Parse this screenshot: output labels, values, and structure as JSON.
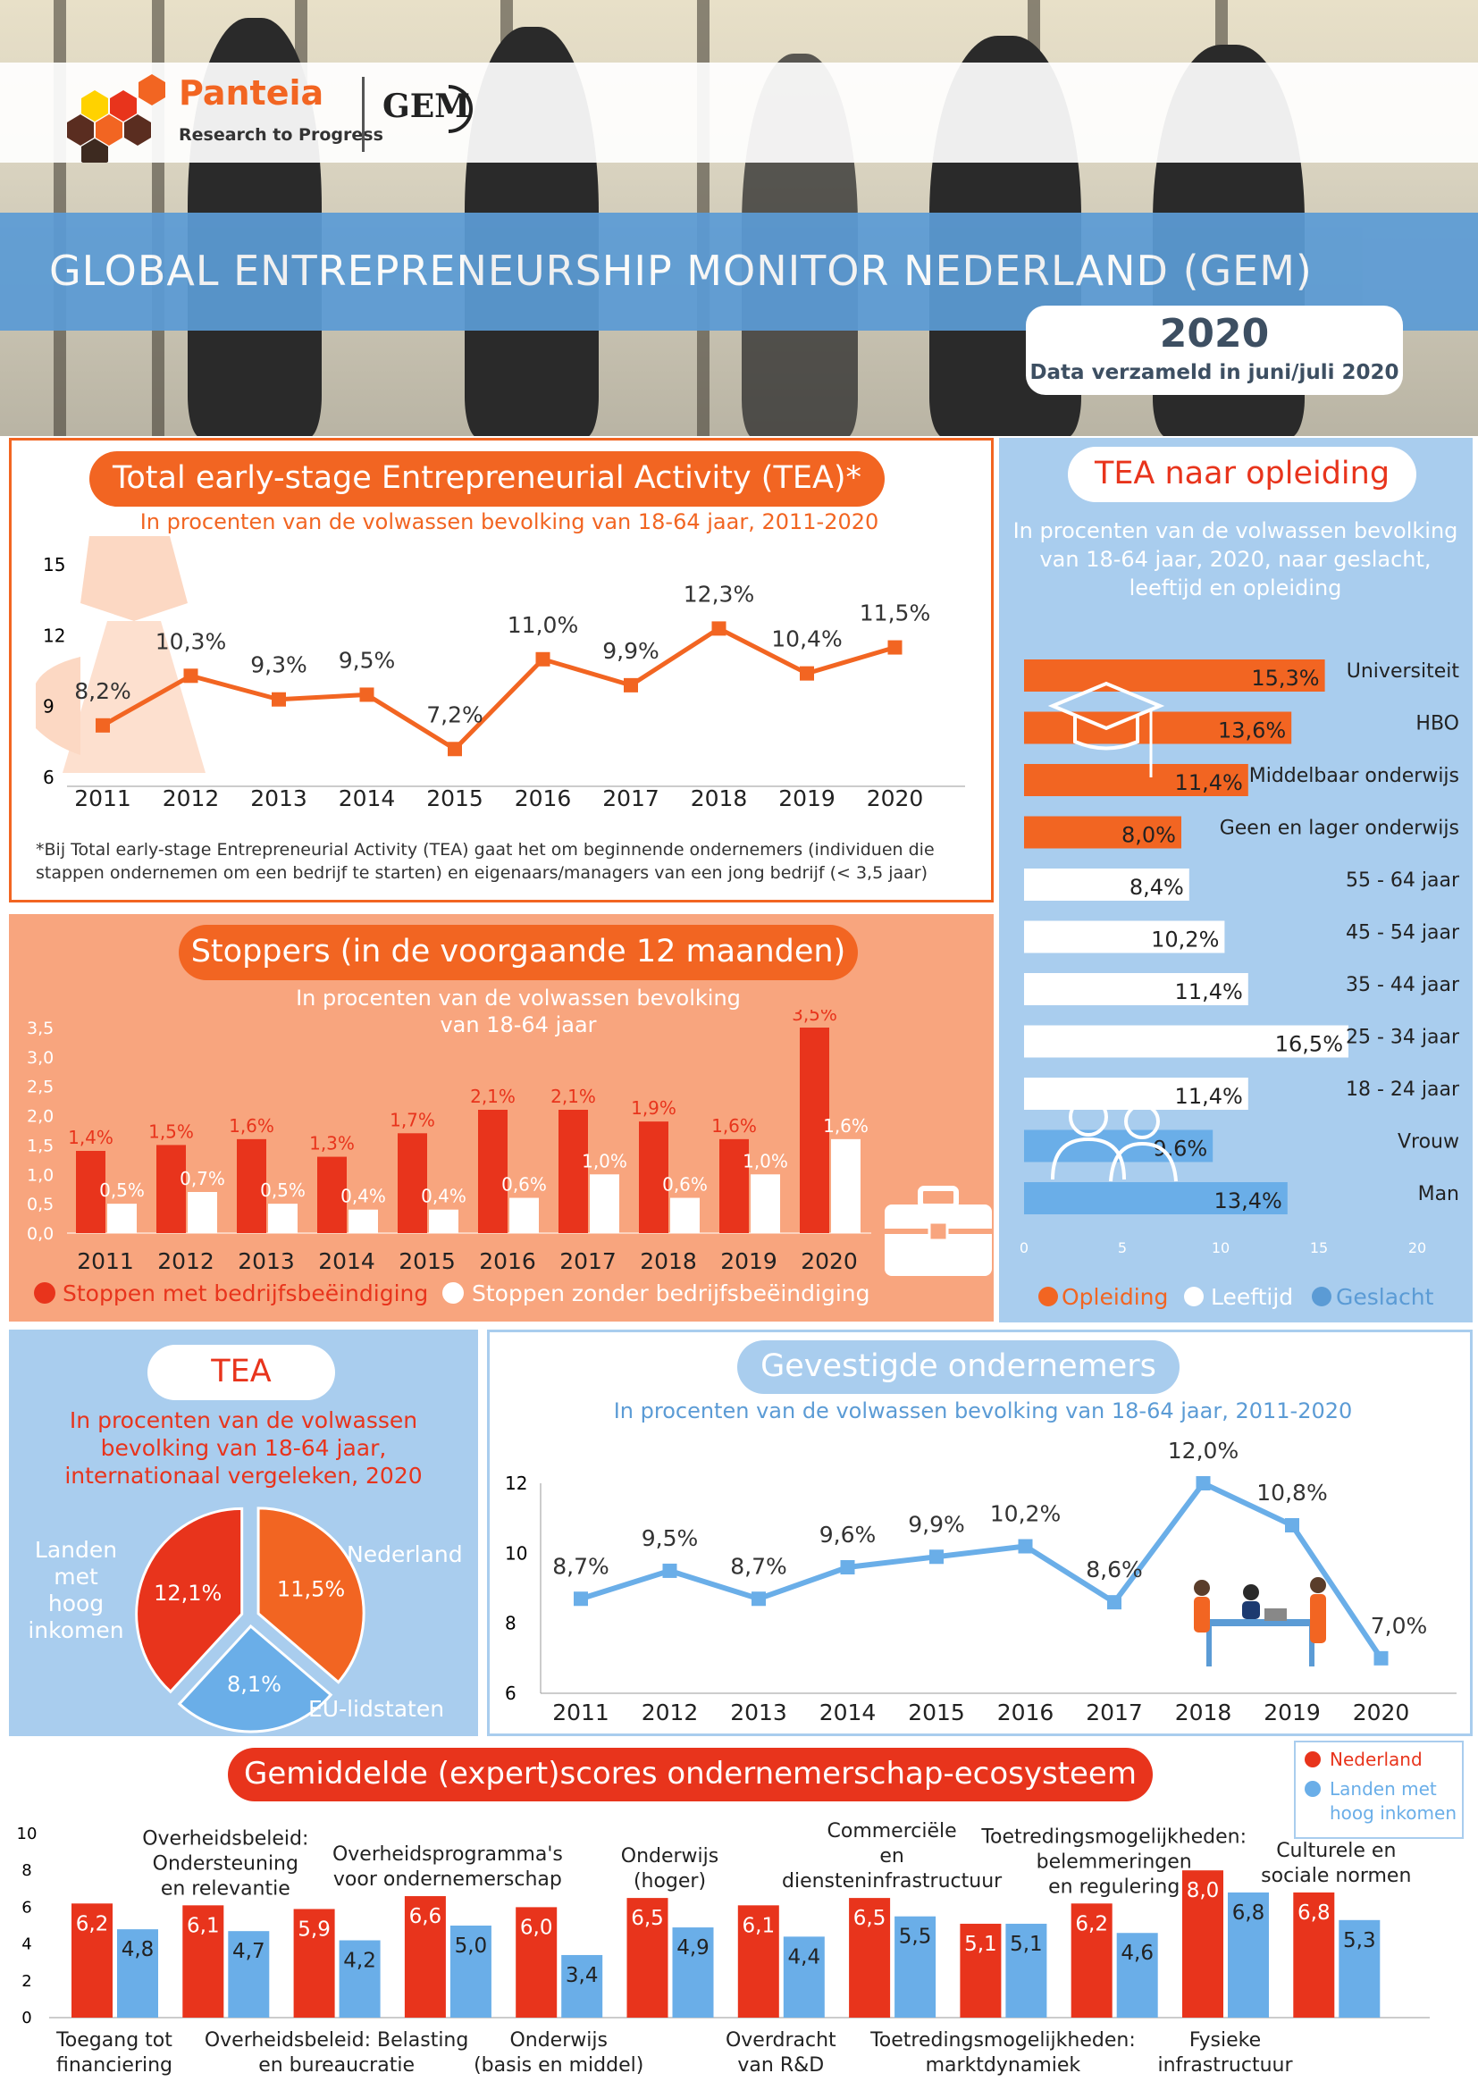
{
  "header": {
    "brand": "Panteia",
    "tagline": "Research to Progress",
    "partner_logo": "GEM",
    "title": "GLOBAL ENTREPRENEURSHIP MONITOR NEDERLAND (GEM)",
    "year": "2020",
    "data_note": "Data verzameld in juni/juli 2020"
  },
  "colors": {
    "orange": "#f26522",
    "red": "#e8341c",
    "blue": "#5b9bd5",
    "lightblue": "#a9cdee",
    "salmon": "#f8a57e",
    "peach": "#fcd8c3"
  },
  "tea": {
    "title": "Total early-stage Entrepreneurial Activity (TEA)*",
    "subtitle": "In procenten van de volwassen bevolking van 18-64 jaar, 2011-2020",
    "footnote1": "*Bij Total early-stage Entrepreneurial Activity (TEA) gaat het om beginnende ondernemers (individuen die",
    "footnote2": "stappen ondernemen om een bedrijf te starten) en eigenaars/managers van een jong bedrijf (< 3,5 jaar)"
  },
  "stoppers": {
    "title": "Stoppers (in de voorgaande 12 maanden)",
    "subtitle1": "In procenten van de volwassen bevolking",
    "subtitle2": "van 18-64 jaar",
    "legend1": "Stoppen met bedrijfsbeëindiging",
    "legend2": "Stoppen zonder bedrijfsbeëindiging"
  },
  "opleiding": {
    "title": "TEA naar opleiding",
    "sub1": "In procenten van de volwassen bevolking",
    "sub2": "van 18-64 jaar, 2020, naar geslacht,",
    "sub3": "leeftijd en opleiding",
    "legend1": "Opleiding",
    "legend2": "Leeftijd",
    "legend3": "Geslacht"
  },
  "intl": {
    "title": "TEA",
    "sub1": "In procenten van de volwassen",
    "sub2": "bevolking van 18-64 jaar,",
    "sub3": "internationaal vergeleken, 2020",
    "label_nl": "Nederland",
    "label_high1": "Landen",
    "label_high2": "met hoog",
    "label_high3": "inkomen",
    "label_eu": "EU-lidstaten"
  },
  "gevestigd": {
    "title": "Gevestigde ondernemers",
    "subtitle": "In procenten van de volwassen bevolking van 18-64 jaar, 2011-2020"
  },
  "eco": {
    "title": "Gemiddelde (expert)scores ondernemerschap-ecosysteem",
    "legend_nl": "Nederland",
    "legend_hi1": "Landen met",
    "legend_hi2": "hoog inkomen"
  },
  "chart_data": [
    {
      "type": "line",
      "id": "tea",
      "x": [
        "2011",
        "2012",
        "2013",
        "2014",
        "2015",
        "2016",
        "2017",
        "2018",
        "2019",
        "2020"
      ],
      "values": [
        8.2,
        10.3,
        9.3,
        9.5,
        7.2,
        11.0,
        9.9,
        12.3,
        10.4,
        11.5
      ],
      "labels": [
        "8,2%",
        "10,3%",
        "9,3%",
        "9,5%",
        "7,2%",
        "11,0%",
        "9,9%",
        "12,3%",
        "10,4%",
        "11,5%"
      ],
      "yticks": [
        "15",
        "12",
        "9",
        "6"
      ],
      "ylim": [
        6,
        15
      ]
    },
    {
      "type": "bar",
      "id": "stoppers",
      "categories": [
        "2011",
        "2012",
        "2013",
        "2014",
        "2015",
        "2016",
        "2017",
        "2018",
        "2019",
        "2020"
      ],
      "yticks": [
        "3,5",
        "3,0",
        "2,5",
        "2,0",
        "1,5",
        "1,0",
        "0,5",
        "0,0"
      ],
      "ylim": [
        0,
        3.5
      ],
      "series": [
        {
          "name": "Stoppen met bedrijfsbeëindiging",
          "values": [
            1.4,
            1.5,
            1.6,
            1.3,
            1.7,
            2.1,
            2.1,
            1.9,
            1.6,
            3.5
          ],
          "labels": [
            "1,4%",
            "1,5%",
            "1,6%",
            "1,3%",
            "1,7%",
            "2,1%",
            "2,1%",
            "1,9%",
            "1,6%",
            "3,5%"
          ]
        },
        {
          "name": "Stoppen zonder bedrijfsbeëindiging",
          "values": [
            0.5,
            0.7,
            0.5,
            0.4,
            0.4,
            0.6,
            1.0,
            0.6,
            1.0,
            1.6
          ],
          "labels": [
            "0,5%",
            "0,7%",
            "0,5%",
            "0,4%",
            "0,4%",
            "0,6%",
            "1,0%",
            "0,6%",
            "1,0%",
            "1,6%"
          ]
        }
      ]
    },
    {
      "type": "bar",
      "id": "opleiding",
      "orientation": "horizontal",
      "xticks": [
        "0",
        "5",
        "10",
        "15",
        "20"
      ],
      "xlim": [
        0,
        20
      ],
      "bars": [
        {
          "cat": "Universiteit",
          "value": 15.3,
          "label": "15,3%",
          "group": "Opleiding"
        },
        {
          "cat": "HBO",
          "value": 13.6,
          "label": "13,6%",
          "group": "Opleiding"
        },
        {
          "cat": "Middelbaar onderwijs",
          "value": 11.4,
          "label": "11,4%",
          "group": "Opleiding"
        },
        {
          "cat": "Geen en lager onderwijs",
          "value": 8.0,
          "label": "8,0%",
          "group": "Opleiding"
        },
        {
          "cat": "55 - 64 jaar",
          "value": 8.4,
          "label": "8,4%",
          "group": "Leeftijd"
        },
        {
          "cat": "45 - 54 jaar",
          "value": 10.2,
          "label": "10,2%",
          "group": "Leeftijd"
        },
        {
          "cat": "35 - 44 jaar",
          "value": 11.4,
          "label": "11,4%",
          "group": "Leeftijd"
        },
        {
          "cat": "25 - 34 jaar",
          "value": 16.5,
          "label": "16,5%",
          "group": "Leeftijd"
        },
        {
          "cat": "18 - 24 jaar",
          "value": 11.4,
          "label": "11,4%",
          "group": "Leeftijd"
        },
        {
          "cat": "Vrouw",
          "value": 9.6,
          "label": "9,6%",
          "group": "Geslacht"
        },
        {
          "cat": "Man",
          "value": 13.4,
          "label": "13,4%",
          "group": "Geslacht"
        }
      ]
    },
    {
      "type": "pie",
      "id": "intl",
      "slices": [
        {
          "name": "Nederland",
          "value": 11.5,
          "label": "11,5%"
        },
        {
          "name": "EU-lidstaten",
          "value": 8.1,
          "label": "8,1%"
        },
        {
          "name": "Landen met hoog inkomen",
          "value": 12.1,
          "label": "12,1%"
        }
      ]
    },
    {
      "type": "line",
      "id": "gevestigd",
      "x": [
        "2011",
        "2012",
        "2013",
        "2014",
        "2015",
        "2016",
        "2017",
        "2018",
        "2019",
        "2020"
      ],
      "values": [
        8.7,
        9.5,
        8.7,
        9.6,
        9.9,
        10.2,
        8.6,
        12.0,
        10.8,
        7.0
      ],
      "labels": [
        "8,7%",
        "9,5%",
        "8,7%",
        "9,6%",
        "9,9%",
        "10,2%",
        "8,6%",
        "12,0%",
        "10,8%",
        "7,0%"
      ],
      "yticks": [
        "12",
        "10",
        "8",
        "6"
      ],
      "ylim": [
        6,
        12
      ]
    },
    {
      "type": "bar",
      "id": "eco",
      "yticks": [
        "10",
        "8",
        "6",
        "4",
        "2",
        "0"
      ],
      "ylim": [
        0,
        10
      ],
      "categories": [
        "Toegang tot financiering",
        "Overheidsbeleid: Ondersteuning en relevantie",
        "Overheidsbeleid: Belasting en bureaucratie",
        "Overheidsprogramma's voor ondernemerschap",
        "Onderwijs (basis en middel)",
        "Onderwijs (hoger)",
        "Overdracht van R&D",
        "Commerciële en diensteninfrastructuur",
        "Toetredingsmogelijkheden: marktdynamiek",
        "Toetredingsmogelijkheden: belemmeringen en regulering",
        "Fysieke infrastructuur",
        "Culturele en sociale normen"
      ],
      "top_labels": [
        [],
        [
          "Overheidsbeleid:",
          "Ondersteuning",
          "en relevantie"
        ],
        [],
        [
          "Overheidsprogramma's",
          "voor ondernemerschap"
        ],
        [],
        [
          "Onderwijs",
          "(hoger)"
        ],
        [],
        [
          "Commerciële",
          "en",
          "diensteninfrastructuur"
        ],
        [],
        [
          "Toetredingsmogelijkheden:",
          "belemmeringen",
          "en regulering"
        ],
        [],
        [
          "Culturele en",
          "sociale normen"
        ]
      ],
      "bottom_labels": [
        [
          "Toegang tot",
          "financiering"
        ],
        [],
        [
          "Overheidsbeleid: Belasting",
          "en bureaucratie"
        ],
        [],
        [
          "Onderwijs",
          "(basis en middel)"
        ],
        [],
        [
          "Overdracht",
          "van R&D"
        ],
        [],
        [
          "Toetredingsmogelijkheden:",
          "marktdynamiek"
        ],
        [],
        [
          "Fysieke",
          "infrastructuur"
        ],
        []
      ],
      "series": [
        {
          "name": "Nederland",
          "values": [
            6.2,
            6.1,
            5.9,
            6.6,
            6.0,
            6.5,
            6.1,
            6.5,
            5.1,
            6.2,
            8.0,
            6.8
          ],
          "labels": [
            "6,2",
            "6,1",
            "5,9",
            "6,6",
            "6,0",
            "6,5",
            "6,1",
            "6,5",
            "5,1",
            "6,2",
            "8,0",
            "6,8"
          ]
        },
        {
          "name": "Landen met hoog inkomen",
          "values": [
            4.8,
            4.7,
            4.2,
            5.0,
            3.4,
            4.9,
            4.4,
            5.5,
            5.1,
            4.6,
            6.8,
            5.3
          ],
          "labels": [
            "4,8",
            "4,7",
            "4,2",
            "5,0",
            "3,4",
            "4,9",
            "4,4",
            "5,5",
            "5,1",
            "4,6",
            "6,8",
            "5,3"
          ]
        }
      ]
    }
  ]
}
